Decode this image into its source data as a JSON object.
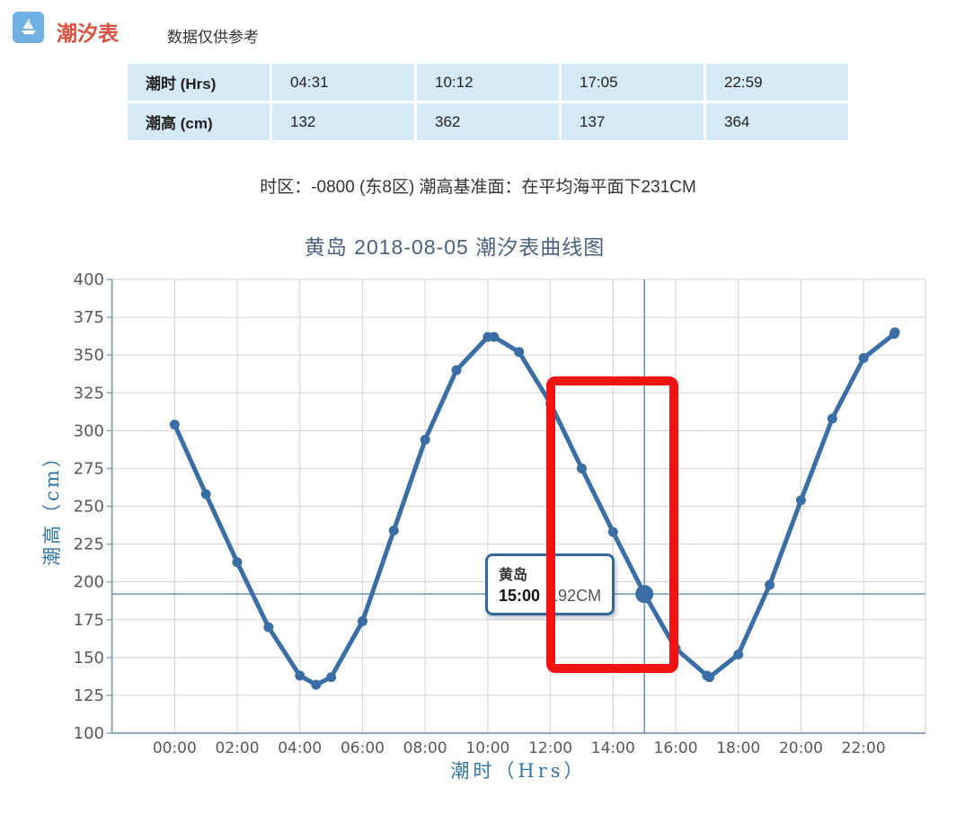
{
  "header": {
    "app_title": "潮汐表",
    "note": "数据仅供参考",
    "icon": "boat-icon",
    "icon_bg": "#6fb1e4",
    "title_color": "#d9503f"
  },
  "table": {
    "rows": [
      {
        "label": "潮时 (Hrs)",
        "values": [
          "04:31",
          "10:12",
          "17:05",
          "22:59"
        ]
      },
      {
        "label": "潮高 (cm)",
        "values": [
          "132",
          "362",
          "137",
          "364"
        ]
      }
    ]
  },
  "info_line": "时区：-0800 (东8区) 潮高基准面：在平均海平面下231CM",
  "tooltip": {
    "location": "黄岛",
    "time": "15:00",
    "value": "192CM"
  },
  "chart_data": {
    "type": "line",
    "title": "黄岛 2018-08-05 潮汐表曲线图",
    "xlabel": "潮时（Hrs）",
    "ylabel": "潮高（cm）",
    "x_ticks": [
      "00:00",
      "02:00",
      "04:00",
      "06:00",
      "08:00",
      "10:00",
      "12:00",
      "14:00",
      "16:00",
      "18:00",
      "20:00",
      "22:00"
    ],
    "y_ticks": [
      400,
      375,
      350,
      325,
      300,
      275,
      250,
      225,
      200,
      175,
      150,
      125,
      100
    ],
    "ylim": [
      100,
      400
    ],
    "x_hours_range": [
      0,
      23
    ],
    "grid": true,
    "legend": "none",
    "line_color": "#3a6ea5",
    "grid_color": "#d3d3d3",
    "axis_color": "#92a5bb",
    "tick_label_color": "#595959",
    "crosshair_color": "#4d7cb2",
    "points": [
      [
        0,
        304
      ],
      [
        1,
        258
      ],
      [
        2,
        213
      ],
      [
        3,
        170
      ],
      [
        4,
        138
      ],
      [
        4.52,
        132
      ],
      [
        5,
        137
      ],
      [
        6,
        174
      ],
      [
        7,
        234
      ],
      [
        8,
        294
      ],
      [
        9,
        340
      ],
      [
        10,
        362
      ],
      [
        10.2,
        362
      ],
      [
        11,
        352
      ],
      [
        12,
        318
      ],
      [
        13,
        275
      ],
      [
        14,
        233
      ],
      [
        15,
        192
      ],
      [
        16,
        156
      ],
      [
        17,
        138
      ],
      [
        17.08,
        137
      ],
      [
        18,
        152
      ],
      [
        19,
        198
      ],
      [
        20,
        254
      ],
      [
        21,
        308
      ],
      [
        22,
        348
      ],
      [
        22.98,
        364
      ],
      [
        23,
        365
      ]
    ],
    "tide_extremes": [
      {
        "time": "04:31",
        "cm": 132
      },
      {
        "time": "10:12",
        "cm": 362
      },
      {
        "time": "17:05",
        "cm": 137
      },
      {
        "time": "22:59",
        "cm": 364
      }
    ],
    "highlight": {
      "hour": 15,
      "cm": 192
    },
    "annotation_box": {
      "color": "#f41212",
      "hour_from": 11.86,
      "hour_to": 16.07,
      "cm_from": 140,
      "cm_to": 336
    }
  }
}
